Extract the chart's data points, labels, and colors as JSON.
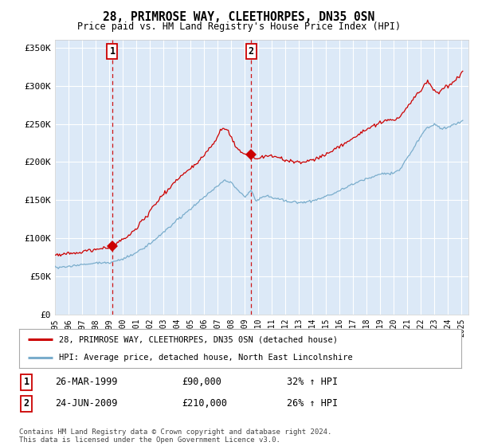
{
  "title": "28, PRIMROSE WAY, CLEETHORPES, DN35 0SN",
  "subtitle": "Price paid vs. HM Land Registry's House Price Index (HPI)",
  "background_color": "#ffffff",
  "plot_bg_color": "#dce9f7",
  "grid_color": "#ffffff",
  "red_line_label": "28, PRIMROSE WAY, CLEETHORPES, DN35 0SN (detached house)",
  "blue_line_label": "HPI: Average price, detached house, North East Lincolnshire",
  "footnote": "Contains HM Land Registry data © Crown copyright and database right 2024.\nThis data is licensed under the Open Government Licence v3.0.",
  "transaction1_date": "26-MAR-1999",
  "transaction1_price": "£90,000",
  "transaction1_hpi": "32% ↑ HPI",
  "transaction2_date": "24-JUN-2009",
  "transaction2_price": "£210,000",
  "transaction2_hpi": "26% ↑ HPI",
  "ylim": [
    0,
    360000
  ],
  "yticks": [
    0,
    50000,
    100000,
    150000,
    200000,
    250000,
    300000,
    350000
  ],
  "ytick_labels": [
    "£0",
    "£50K",
    "£100K",
    "£150K",
    "£200K",
    "£250K",
    "£300K",
    "£350K"
  ],
  "red_color": "#cc0000",
  "blue_color": "#7aadcc",
  "marker1_x": 1999.23,
  "marker1_y": 90000,
  "marker2_x": 2009.48,
  "marker2_y": 210000,
  "vline1_x": 1999.23,
  "vline2_x": 2009.48,
  "xlim_start": 1995,
  "xlim_end": 2025.5
}
